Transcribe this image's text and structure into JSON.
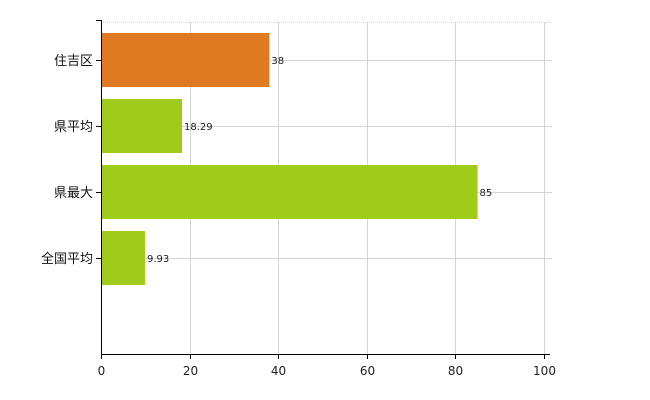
{
  "chart_data": {
    "type": "bar",
    "orientation": "horizontal",
    "categories": [
      "住吉区",
      "県平均",
      "県最大",
      "全国平均"
    ],
    "values": [
      38,
      18.29,
      85,
      9.93
    ],
    "data_labels": [
      "38",
      "18.29",
      "85",
      "9.93"
    ],
    "colors": [
      "#e07a22",
      "#9fcc1a",
      "#9fcc1a",
      "#9fcc1a"
    ],
    "xlim": [
      0,
      100
    ],
    "xticks": [
      0,
      20,
      40,
      60,
      80,
      100
    ],
    "xtick_labels": [
      "0",
      "20",
      "40",
      "60",
      "80",
      "100"
    ],
    "grid": true,
    "title": "",
    "xlabel": "",
    "ylabel": ""
  }
}
